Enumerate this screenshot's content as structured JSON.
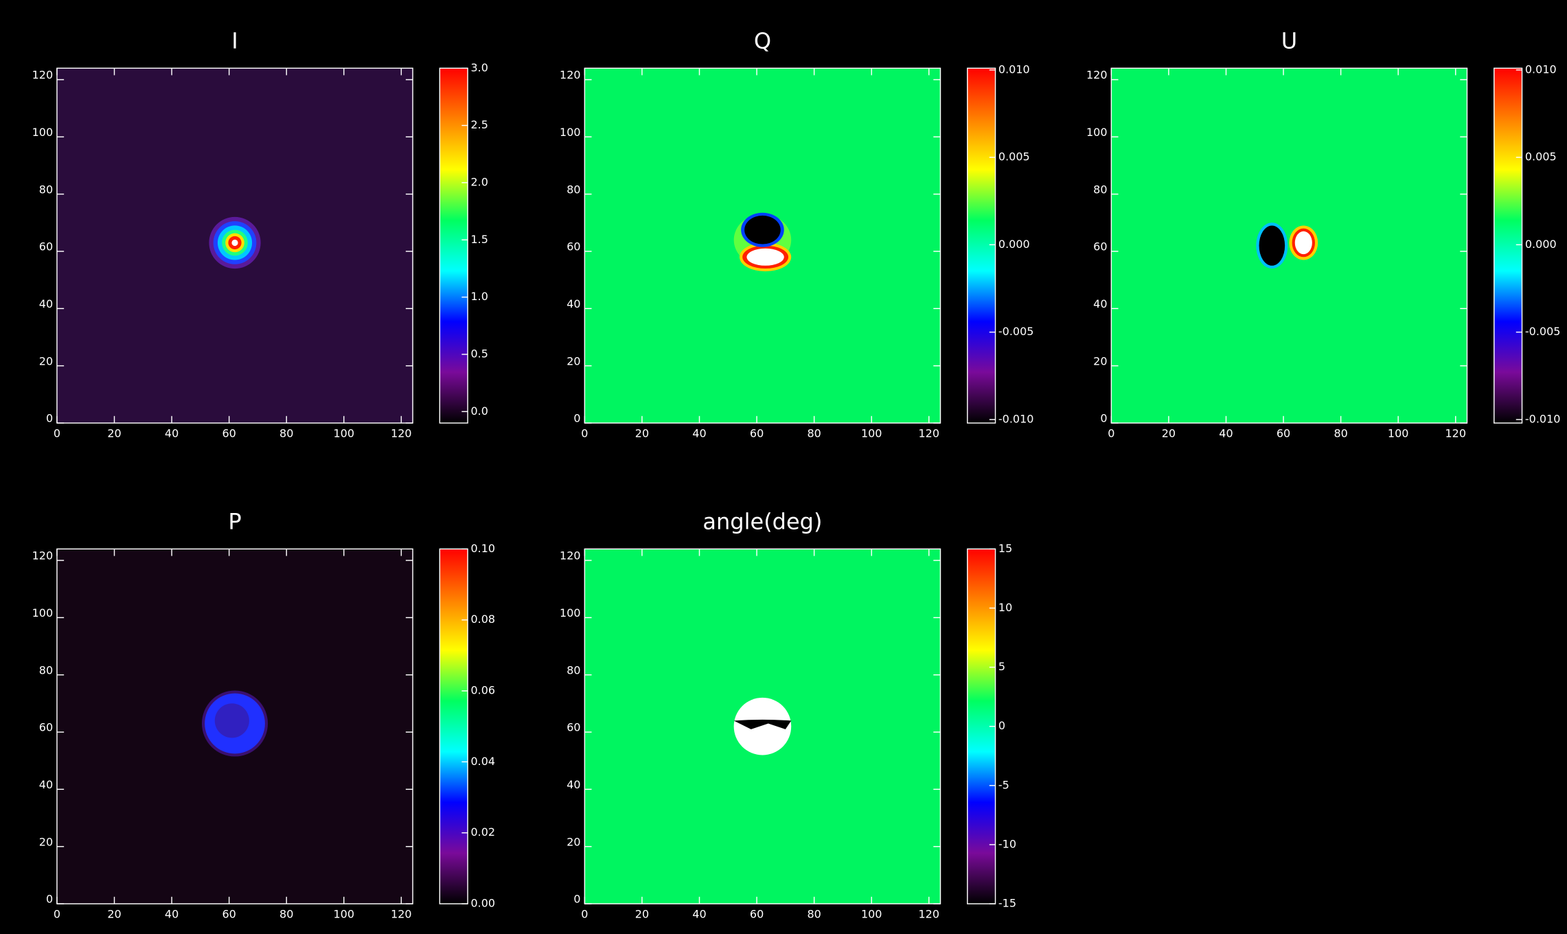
{
  "chart_data": [
    {
      "type": "heatmap",
      "title": "I",
      "background": "#2a0c3c",
      "xlim": [
        0,
        124
      ],
      "ylim": [
        0,
        124
      ],
      "xticks": [
        0,
        20,
        40,
        60,
        80,
        100,
        120
      ],
      "yticks": [
        0,
        20,
        40,
        60,
        80,
        100,
        120
      ],
      "zlim": [
        -0.1,
        3.0
      ],
      "zticks": [
        {
          "value": 0,
          "label": "0.0"
        },
        0.5,
        {
          "value": 1,
          "label": "1.0"
        },
        1.5,
        {
          "value": 2,
          "label": "2.0"
        },
        2.5,
        {
          "value": 3,
          "label": "3.0"
        }
      ],
      "colormap": [
        "#000000",
        "#7a0a9a",
        "#0000ff",
        "#00ffff",
        "#00ff60",
        "#ffff00",
        "#ff8000",
        "#ff0000"
      ]
    },
    {
      "type": "heatmap",
      "title": "Q",
      "background": "#00f560",
      "xlim": [
        0,
        124
      ],
      "ylim": [
        0,
        124
      ],
      "xticks": [
        0,
        20,
        40,
        60,
        80,
        100,
        120
      ],
      "yticks": [
        0,
        20,
        40,
        60,
        80,
        100,
        120
      ],
      "zlim": [
        -0.0102,
        0.0101
      ],
      "zticks": [
        {
          "value": -0.01,
          "label": "-0.010"
        },
        -0.005,
        {
          "value": 0,
          "label": "0.000"
        },
        0.005,
        {
          "value": 0.01,
          "label": "0.010"
        }
      ],
      "colormap": [
        "#000000",
        "#7a0a9a",
        "#0000ff",
        "#00ffff",
        "#00ff60",
        "#ffff00",
        "#ff8000",
        "#ff0000"
      ]
    },
    {
      "type": "heatmap",
      "title": "U",
      "background": "#00f560",
      "xlim": [
        0,
        124
      ],
      "ylim": [
        0,
        124
      ],
      "xticks": [
        0,
        20,
        40,
        60,
        80,
        100,
        120
      ],
      "yticks": [
        0,
        20,
        40,
        60,
        80,
        100,
        120
      ],
      "zlim": [
        -0.0102,
        0.0101
      ],
      "zticks": [
        {
          "value": -0.01,
          "label": "-0.010"
        },
        -0.005,
        {
          "value": 0,
          "label": "0.000"
        },
        0.005,
        {
          "value": 0.01,
          "label": "0.010"
        }
      ],
      "colormap": [
        "#000000",
        "#7a0a9a",
        "#0000ff",
        "#00ffff",
        "#00ff60",
        "#ffff00",
        "#ff8000",
        "#ff0000"
      ]
    },
    {
      "type": "heatmap",
      "title": "P",
      "background": "#140514",
      "xlim": [
        0,
        124
      ],
      "ylim": [
        0,
        124
      ],
      "xticks": [
        0,
        20,
        40,
        60,
        80,
        100,
        120
      ],
      "yticks": [
        0,
        20,
        40,
        60,
        80,
        100,
        120
      ],
      "zlim": [
        0,
        0.1
      ],
      "zticks": [
        {
          "value": 0,
          "label": "0.00"
        },
        0.02,
        0.04,
        0.06,
        0.08,
        {
          "value": 0.1,
          "label": "0.10"
        }
      ],
      "colormap": [
        "#000000",
        "#7a0a9a",
        "#0000ff",
        "#00ffff",
        "#00ff60",
        "#ffff00",
        "#ff8000",
        "#ff0000"
      ]
    },
    {
      "type": "heatmap",
      "title": "angle(deg)",
      "background": "#00f560",
      "xlim": [
        0,
        124
      ],
      "ylim": [
        0,
        124
      ],
      "xticks": [
        0,
        20,
        40,
        60,
        80,
        100,
        120
      ],
      "yticks": [
        0,
        20,
        40,
        60,
        80,
        100,
        120
      ],
      "zlim": [
        -15,
        15
      ],
      "zticks": [
        -15,
        -10,
        -5,
        0,
        5,
        10,
        15
      ],
      "colormap": [
        "#000000",
        "#7a0a9a",
        "#0000ff",
        "#00ffff",
        "#00ff60",
        "#ffff00",
        "#ff8000",
        "#ff0000"
      ]
    }
  ]
}
